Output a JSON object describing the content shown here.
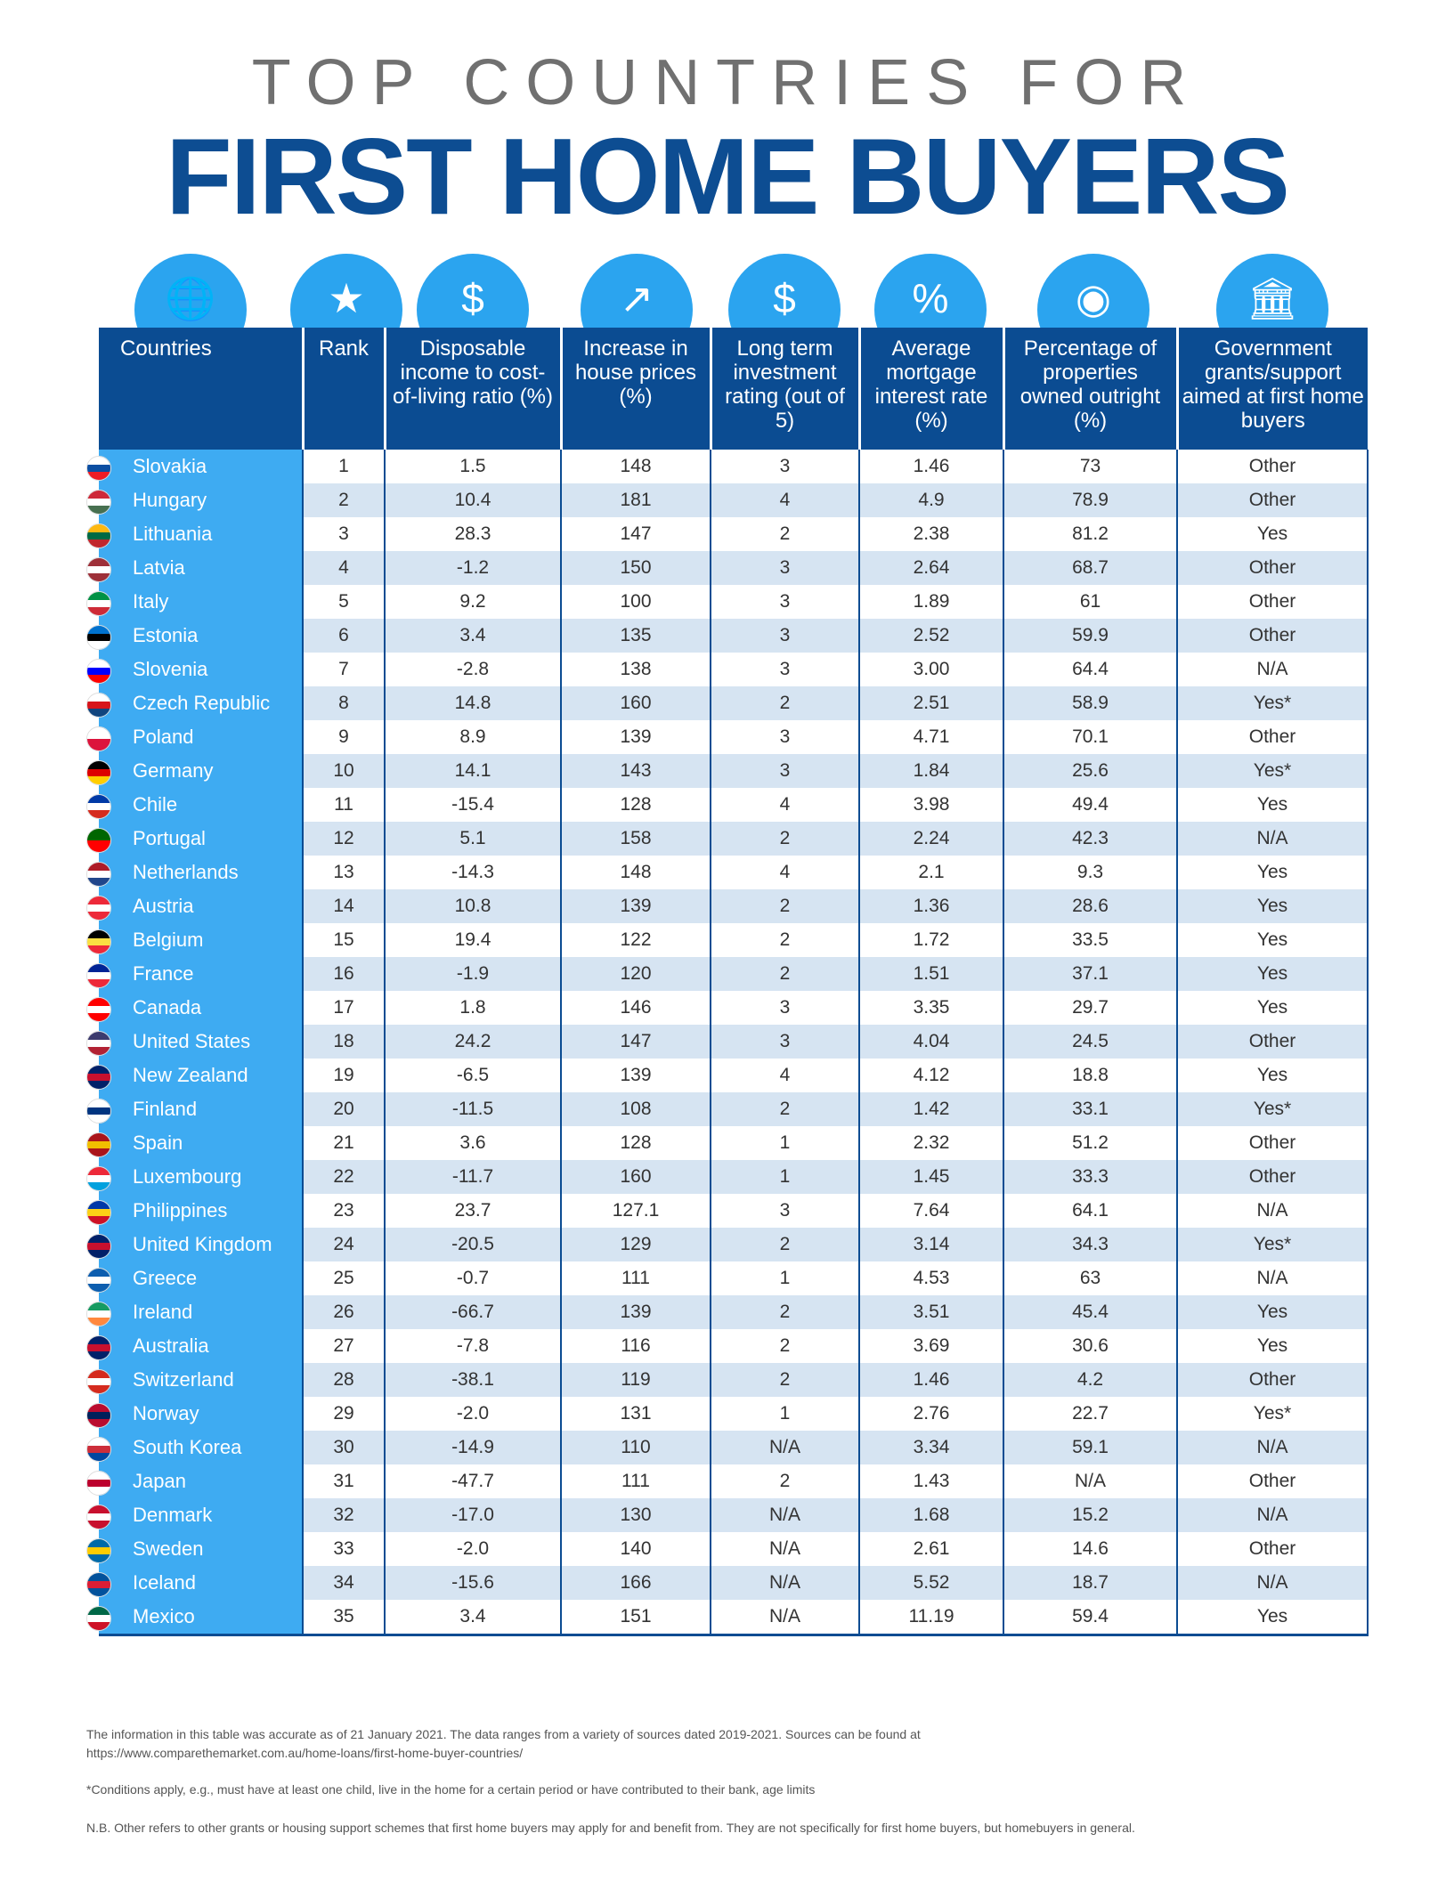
{
  "title_line1": "TOP COUNTRIES FOR",
  "title_line2": "FIRST HOME BUYERS",
  "header_icons": [
    "globe-icon",
    "podium-icon",
    "money-hand-icon",
    "house-chart-icon",
    "money-bag-icon",
    "house-percent-icon",
    "award-house-icon",
    "bank-icon"
  ],
  "columns": [
    "Countries",
    "Rank",
    "Disposable income to cost-of-living ratio (%)",
    "Increase in house prices (%)",
    "Long term investment rating (out of 5)",
    "Average mortgage interest rate (%)",
    "Percentage of properties owned outright (%)",
    "Government grants/support aimed at first home buyers"
  ],
  "rows": [
    [
      "Slovakia",
      "1",
      "1.5",
      "148",
      "3",
      "1.46",
      "73",
      "Other"
    ],
    [
      "Hungary",
      "2",
      "10.4",
      "181",
      "4",
      "4.9",
      "78.9",
      "Other"
    ],
    [
      "Lithuania",
      "3",
      "28.3",
      "147",
      "2",
      "2.38",
      "81.2",
      "Yes"
    ],
    [
      "Latvia",
      "4",
      "-1.2",
      "150",
      "3",
      "2.64",
      "68.7",
      "Other"
    ],
    [
      "Italy",
      "5",
      "9.2",
      "100",
      "3",
      "1.89",
      "61",
      "Other"
    ],
    [
      "Estonia",
      "6",
      "3.4",
      "135",
      "3",
      "2.52",
      "59.9",
      "Other"
    ],
    [
      "Slovenia",
      "7",
      "-2.8",
      "138",
      "3",
      "3.00",
      "64.4",
      "N/A"
    ],
    [
      "Czech Republic",
      "8",
      "14.8",
      "160",
      "2",
      "2.51",
      "58.9",
      "Yes*"
    ],
    [
      "Poland",
      "9",
      "8.9",
      "139",
      "3",
      "4.71",
      "70.1",
      "Other"
    ],
    [
      "Germany",
      "10",
      "14.1",
      "143",
      "3",
      "1.84",
      "25.6",
      "Yes*"
    ],
    [
      "Chile",
      "11",
      "-15.4",
      "128",
      "4",
      "3.98",
      "49.4",
      "Yes"
    ],
    [
      "Portugal",
      "12",
      "5.1",
      "158",
      "2",
      "2.24",
      "42.3",
      "N/A"
    ],
    [
      "Netherlands",
      "13",
      "-14.3",
      "148",
      "4",
      "2.1",
      "9.3",
      "Yes"
    ],
    [
      "Austria",
      "14",
      "10.8",
      "139",
      "2",
      "1.36",
      "28.6",
      "Yes"
    ],
    [
      "Belgium",
      "15",
      "19.4",
      "122",
      "2",
      "1.72",
      "33.5",
      "Yes"
    ],
    [
      "France",
      "16",
      "-1.9",
      "120",
      "2",
      "1.51",
      "37.1",
      "Yes"
    ],
    [
      "Canada",
      "17",
      "1.8",
      "146",
      "3",
      "3.35",
      "29.7",
      "Yes"
    ],
    [
      "United States",
      "18",
      "24.2",
      "147",
      "3",
      "4.04",
      "24.5",
      "Other"
    ],
    [
      "New Zealand",
      "19",
      "-6.5",
      "139",
      "4",
      "4.12",
      "18.8",
      "Yes"
    ],
    [
      "Finland",
      "20",
      "-11.5",
      "108",
      "2",
      "1.42",
      "33.1",
      "Yes*"
    ],
    [
      "Spain",
      "21",
      "3.6",
      "128",
      "1",
      "2.32",
      "51.2",
      "Other"
    ],
    [
      "Luxembourg",
      "22",
      "-11.7",
      "160",
      "1",
      "1.45",
      "33.3",
      "Other"
    ],
    [
      "Philippines",
      "23",
      "23.7",
      "127.1",
      "3",
      "7.64",
      "64.1",
      "N/A"
    ],
    [
      "United Kingdom",
      "24",
      "-20.5",
      "129",
      "2",
      "3.14",
      "34.3",
      "Yes*"
    ],
    [
      "Greece",
      "25",
      "-0.7",
      "111",
      "1",
      "4.53",
      "63",
      "N/A"
    ],
    [
      "Ireland",
      "26",
      "-66.7",
      "139",
      "2",
      "3.51",
      "45.4",
      "Yes"
    ],
    [
      "Australia",
      "27",
      "-7.8",
      "116",
      "2",
      "3.69",
      "30.6",
      "Yes"
    ],
    [
      "Switzerland",
      "28",
      "-38.1",
      "119",
      "2",
      "1.46",
      "4.2",
      "Other"
    ],
    [
      "Norway",
      "29",
      "-2.0",
      "131",
      "1",
      "2.76",
      "22.7",
      "Yes*"
    ],
    [
      "South Korea",
      "30",
      "-14.9",
      "110",
      "N/A",
      "3.34",
      "59.1",
      "N/A"
    ],
    [
      "Japan",
      "31",
      "-47.7",
      "111",
      "2",
      "1.43",
      "N/A",
      "Other"
    ],
    [
      "Denmark",
      "32",
      "-17.0",
      "130",
      "N/A",
      "1.68",
      "15.2",
      "N/A"
    ],
    [
      "Sweden",
      "33",
      "-2.0",
      "140",
      "N/A",
      "2.61",
      "14.6",
      "Other"
    ],
    [
      "Iceland",
      "34",
      "-15.6",
      "166",
      "N/A",
      "5.52",
      "18.7",
      "N/A"
    ],
    [
      "Mexico",
      "35",
      "3.4",
      "151",
      "N/A",
      "11.19",
      "59.4",
      "Yes"
    ]
  ],
  "flag_colors": {
    "Slovakia": [
      "#ffffff",
      "#0b4ea2",
      "#ee1c25"
    ],
    "Hungary": [
      "#ce2939",
      "#ffffff",
      "#477050"
    ],
    "Lithuania": [
      "#fdb913",
      "#006a44",
      "#c1272d"
    ],
    "Latvia": [
      "#9e3039",
      "#ffffff",
      "#9e3039"
    ],
    "Italy": [
      "#009246",
      "#ffffff",
      "#ce2b37"
    ],
    "Estonia": [
      "#0072ce",
      "#000000",
      "#ffffff"
    ],
    "Slovenia": [
      "#ffffff",
      "#0000ff",
      "#ff0000"
    ],
    "Czech Republic": [
      "#ffffff",
      "#d7141a",
      "#11457e"
    ],
    "Poland": [
      "#ffffff",
      "#dc143c"
    ],
    "Germany": [
      "#000000",
      "#dd0000",
      "#ffce00"
    ],
    "Chile": [
      "#0039a6",
      "#ffffff",
      "#d52b1e"
    ],
    "Portugal": [
      "#006600",
      "#ff0000"
    ],
    "Netherlands": [
      "#ae1c28",
      "#ffffff",
      "#21468b"
    ],
    "Austria": [
      "#ed2939",
      "#ffffff",
      "#ed2939"
    ],
    "Belgium": [
      "#000000",
      "#fae042",
      "#ed2939"
    ],
    "France": [
      "#002395",
      "#ffffff",
      "#ed2939"
    ],
    "Canada": [
      "#ff0000",
      "#ffffff",
      "#ff0000"
    ],
    "United States": [
      "#3c3b6e",
      "#ffffff",
      "#b22234"
    ],
    "New Zealand": [
      "#012169",
      "#c8102e",
      "#012169"
    ],
    "Finland": [
      "#ffffff",
      "#003580",
      "#ffffff"
    ],
    "Spain": [
      "#aa151b",
      "#f1bf00",
      "#aa151b"
    ],
    "Luxembourg": [
      "#ed2939",
      "#ffffff",
      "#00a1de"
    ],
    "Philippines": [
      "#0038a8",
      "#fcd116",
      "#ce1126"
    ],
    "United Kingdom": [
      "#012169",
      "#c8102e",
      "#012169"
    ],
    "Greece": [
      "#0d5eaf",
      "#ffffff",
      "#0d5eaf"
    ],
    "Ireland": [
      "#169b62",
      "#ffffff",
      "#ff883e"
    ],
    "Australia": [
      "#012169",
      "#c8102e",
      "#012169"
    ],
    "Switzerland": [
      "#d52b1e",
      "#ffffff",
      "#d52b1e"
    ],
    "Norway": [
      "#ba0c2f",
      "#00205b",
      "#ba0c2f"
    ],
    "South Korea": [
      "#ffffff",
      "#cd2e3a",
      "#0047a0"
    ],
    "Japan": [
      "#ffffff",
      "#bc002d",
      "#ffffff"
    ],
    "Denmark": [
      "#c8102e",
      "#ffffff",
      "#c8102e"
    ],
    "Sweden": [
      "#006aa7",
      "#fecc00",
      "#006aa7"
    ],
    "Iceland": [
      "#02529c",
      "#dc1e35",
      "#02529c"
    ],
    "Mexico": [
      "#006847",
      "#ffffff",
      "#ce1126"
    ]
  },
  "footer": {
    "note1": "The information in this table was accurate as of 21 January 2021. The data ranges from a variety of sources dated 2019-2021. Sources can be found at",
    "note1_url": "https://www.comparethemarket.com.au/home-loans/first-home-buyer-countries/",
    "note2": "*Conditions apply, e.g., must have at least one child, live in the home for a certain period or have contributed to their bank, age limits",
    "note3": "N.B. Other refers to other grants or housing support schemes that first home buyers may apply for and benefit from. They are not specifically for first home buyers, but homebuyers in general."
  }
}
